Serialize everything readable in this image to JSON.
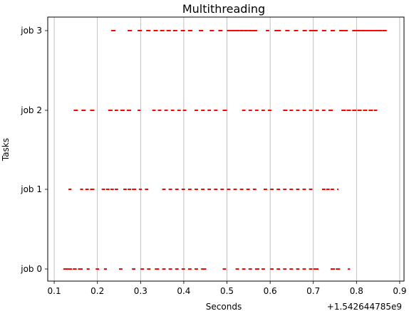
{
  "chart_data": {
    "type": "scatter",
    "title": "Multithreading",
    "xlabel": "Seconds",
    "ylabel": "Tasks",
    "x_offset_label": "+1.542644785e9",
    "xlim": [
      0.085,
      0.91
    ],
    "xticks": [
      0.1,
      0.2,
      0.3,
      0.4,
      0.5,
      0.6,
      0.7,
      0.8,
      0.9
    ],
    "xtick_labels": [
      "0.1",
      "0.2",
      "0.3",
      "0.4",
      "0.5",
      "0.6",
      "0.7",
      "0.8",
      "0.9"
    ],
    "categories": [
      "job 0",
      "job 1",
      "job 2",
      "job 3"
    ],
    "grid": "x-axis vertical lines",
    "marker_color": "#ff0000",
    "series": [
      {
        "category": "job 0",
        "segments": [
          [
            0.121,
            0.141
          ],
          [
            0.143,
            0.152
          ],
          [
            0.155,
            0.166
          ],
          [
            0.175,
            0.182
          ],
          [
            0.196,
            0.204
          ],
          [
            0.215,
            0.222
          ],
          [
            0.25,
            0.258
          ],
          [
            0.28,
            0.288
          ],
          [
            0.3,
            0.308
          ],
          [
            0.315,
            0.323
          ],
          [
            0.333,
            0.343
          ],
          [
            0.35,
            0.358
          ],
          [
            0.365,
            0.373
          ],
          [
            0.38,
            0.388
          ],
          [
            0.395,
            0.403
          ],
          [
            0.41,
            0.418
          ],
          [
            0.425,
            0.433
          ],
          [
            0.44,
            0.452
          ],
          [
            0.49,
            0.498
          ],
          [
            0.52,
            0.528
          ],
          [
            0.535,
            0.543
          ],
          [
            0.55,
            0.558
          ],
          [
            0.565,
            0.575
          ],
          [
            0.58,
            0.588
          ],
          [
            0.6,
            0.608
          ],
          [
            0.615,
            0.623
          ],
          [
            0.63,
            0.638
          ],
          [
            0.645,
            0.653
          ],
          [
            0.66,
            0.668
          ],
          [
            0.675,
            0.683
          ],
          [
            0.69,
            0.698
          ],
          [
            0.7,
            0.712
          ],
          [
            0.74,
            0.75
          ],
          [
            0.752,
            0.762
          ],
          [
            0.78,
            0.785
          ]
        ]
      },
      {
        "category": "job 1",
        "segments": [
          [
            0.133,
            0.14
          ],
          [
            0.16,
            0.167
          ],
          [
            0.172,
            0.18
          ],
          [
            0.183,
            0.193
          ],
          [
            0.21,
            0.218
          ],
          [
            0.22,
            0.228
          ],
          [
            0.23,
            0.238
          ],
          [
            0.24,
            0.248
          ],
          [
            0.26,
            0.268
          ],
          [
            0.27,
            0.278
          ],
          [
            0.28,
            0.29
          ],
          [
            0.296,
            0.303
          ],
          [
            0.31,
            0.318
          ],
          [
            0.35,
            0.358
          ],
          [
            0.365,
            0.373
          ],
          [
            0.38,
            0.388
          ],
          [
            0.395,
            0.403
          ],
          [
            0.41,
            0.418
          ],
          [
            0.425,
            0.433
          ],
          [
            0.44,
            0.448
          ],
          [
            0.455,
            0.463
          ],
          [
            0.47,
            0.478
          ],
          [
            0.485,
            0.493
          ],
          [
            0.5,
            0.508
          ],
          [
            0.515,
            0.523
          ],
          [
            0.53,
            0.538
          ],
          [
            0.545,
            0.553
          ],
          [
            0.56,
            0.568
          ],
          [
            0.585,
            0.593
          ],
          [
            0.6,
            0.608
          ],
          [
            0.615,
            0.623
          ],
          [
            0.63,
            0.638
          ],
          [
            0.645,
            0.653
          ],
          [
            0.66,
            0.668
          ],
          [
            0.675,
            0.683
          ],
          [
            0.69,
            0.698
          ],
          [
            0.72,
            0.728
          ],
          [
            0.73,
            0.738
          ],
          [
            0.74,
            0.748
          ],
          [
            0.755,
            0.758
          ]
        ]
      },
      {
        "category": "job 2",
        "segments": [
          [
            0.145,
            0.155
          ],
          [
            0.163,
            0.173
          ],
          [
            0.183,
            0.193
          ],
          [
            0.225,
            0.235
          ],
          [
            0.24,
            0.248
          ],
          [
            0.253,
            0.263
          ],
          [
            0.268,
            0.278
          ],
          [
            0.293,
            0.3
          ],
          [
            0.327,
            0.335
          ],
          [
            0.34,
            0.348
          ],
          [
            0.355,
            0.363
          ],
          [
            0.37,
            0.378
          ],
          [
            0.385,
            0.393
          ],
          [
            0.398,
            0.406
          ],
          [
            0.425,
            0.433
          ],
          [
            0.44,
            0.448
          ],
          [
            0.455,
            0.463
          ],
          [
            0.47,
            0.478
          ],
          [
            0.49,
            0.5
          ],
          [
            0.535,
            0.543
          ],
          [
            0.55,
            0.558
          ],
          [
            0.565,
            0.573
          ],
          [
            0.58,
            0.588
          ],
          [
            0.595,
            0.603
          ],
          [
            0.63,
            0.64
          ],
          [
            0.645,
            0.653
          ],
          [
            0.66,
            0.668
          ],
          [
            0.675,
            0.683
          ],
          [
            0.69,
            0.698
          ],
          [
            0.705,
            0.713
          ],
          [
            0.72,
            0.728
          ],
          [
            0.735,
            0.745
          ],
          [
            0.765,
            0.775
          ],
          [
            0.777,
            0.787
          ],
          [
            0.79,
            0.8
          ],
          [
            0.802,
            0.812
          ],
          [
            0.815,
            0.825
          ],
          [
            0.828,
            0.838
          ],
          [
            0.84,
            0.848
          ]
        ]
      },
      {
        "category": "job 3",
        "segments": [
          [
            0.232,
            0.242
          ],
          [
            0.27,
            0.28
          ],
          [
            0.293,
            0.303
          ],
          [
            0.313,
            0.323
          ],
          [
            0.33,
            0.34
          ],
          [
            0.345,
            0.355
          ],
          [
            0.36,
            0.37
          ],
          [
            0.375,
            0.385
          ],
          [
            0.393,
            0.403
          ],
          [
            0.41,
            0.42
          ],
          [
            0.435,
            0.445
          ],
          [
            0.46,
            0.47
          ],
          [
            0.48,
            0.49
          ],
          [
            0.5,
            0.51
          ],
          [
            0.51,
            0.52
          ],
          [
            0.52,
            0.53
          ],
          [
            0.53,
            0.54
          ],
          [
            0.54,
            0.55
          ],
          [
            0.55,
            0.56
          ],
          [
            0.56,
            0.57
          ],
          [
            0.59,
            0.598
          ],
          [
            0.61,
            0.618
          ],
          [
            0.615,
            0.625
          ],
          [
            0.635,
            0.645
          ],
          [
            0.655,
            0.665
          ],
          [
            0.675,
            0.685
          ],
          [
            0.69,
            0.7
          ],
          [
            0.7,
            0.71
          ],
          [
            0.72,
            0.73
          ],
          [
            0.74,
            0.75
          ],
          [
            0.76,
            0.77
          ],
          [
            0.77,
            0.78
          ],
          [
            0.79,
            0.8
          ],
          [
            0.8,
            0.81
          ],
          [
            0.81,
            0.82
          ],
          [
            0.82,
            0.83
          ],
          [
            0.83,
            0.84
          ],
          [
            0.84,
            0.85
          ],
          [
            0.85,
            0.86
          ],
          [
            0.86,
            0.87
          ]
        ]
      }
    ]
  }
}
